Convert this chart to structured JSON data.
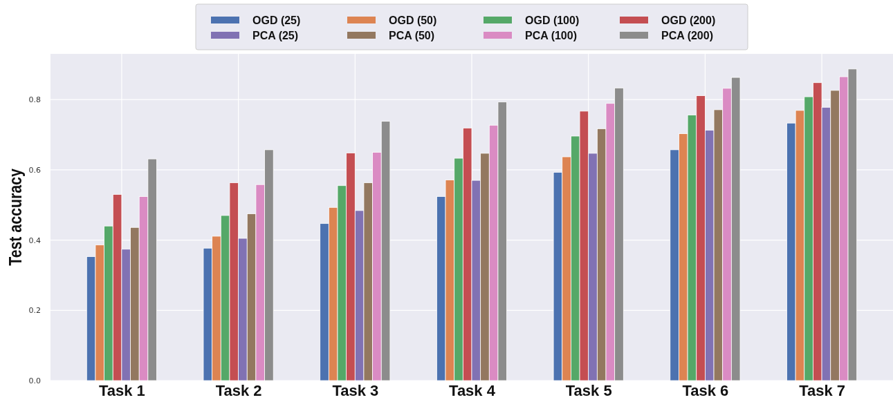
{
  "chart_data": {
    "type": "bar",
    "ylabel": "Test accuracy",
    "categories": [
      "Task 1",
      "Task 2",
      "Task 3",
      "Task 4",
      "Task 5",
      "Task 6",
      "Task 7"
    ],
    "ylim": [
      0,
      0.93
    ],
    "yticks": [
      {
        "value": 0,
        "label": "0.0"
      },
      0.2,
      0.4,
      0.6,
      0.8
    ],
    "grid": true,
    "legend": "top",
    "series": [
      {
        "name": "OGD (25)",
        "color": "#4c72b0",
        "values": [
          0.353,
          0.377,
          0.447,
          0.524,
          0.593,
          0.657,
          0.733
        ]
      },
      {
        "name": "OGD (50)",
        "color": "#dd8452",
        "values": [
          0.386,
          0.411,
          0.493,
          0.571,
          0.637,
          0.703,
          0.769
        ]
      },
      {
        "name": "OGD (100)",
        "color": "#55a868",
        "values": [
          0.44,
          0.47,
          0.555,
          0.633,
          0.696,
          0.756,
          0.808
        ]
      },
      {
        "name": "OGD (200)",
        "color": "#c44e52",
        "values": [
          0.53,
          0.563,
          0.648,
          0.719,
          0.767,
          0.811,
          0.848
        ]
      },
      {
        "name": "PCA (25)",
        "color": "#8172b3",
        "values": [
          0.374,
          0.405,
          0.484,
          0.57,
          0.647,
          0.713,
          0.778
        ]
      },
      {
        "name": "PCA (50)",
        "color": "#937860",
        "values": [
          0.436,
          0.475,
          0.563,
          0.647,
          0.717,
          0.771,
          0.826
        ]
      },
      {
        "name": "PCA (100)",
        "color": "#da8bc3",
        "values": [
          0.524,
          0.558,
          0.65,
          0.727,
          0.789,
          0.832,
          0.865
        ]
      },
      {
        "name": "PCA (200)",
        "color": "#8c8c8c",
        "values": [
          0.631,
          0.657,
          0.738,
          0.793,
          0.833,
          0.863,
          0.887
        ]
      }
    ]
  }
}
